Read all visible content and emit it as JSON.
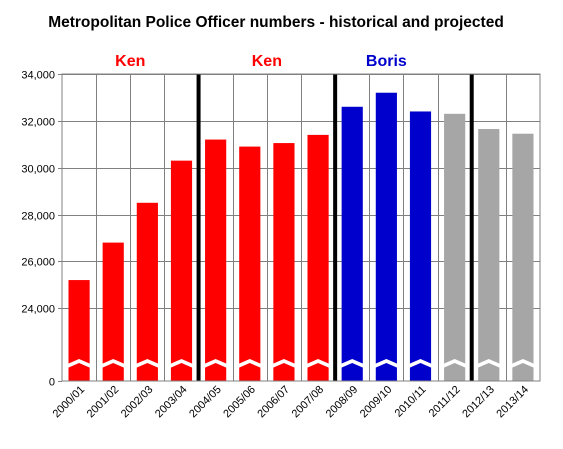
{
  "chart_data": {
    "type": "bar",
    "title": "Metropolitan Police Officer numbers - historical and projected",
    "categories": [
      "2000/01",
      "2001/02",
      "2002/03",
      "2003/04",
      "2004/05",
      "2005/06",
      "2006/07",
      "2007/08",
      "2008/09",
      "2009/10",
      "2010/11",
      "2011/12",
      "2012/13",
      "2013/14"
    ],
    "values": [
      25200,
      26800,
      28500,
      30300,
      31200,
      30900,
      31050,
      31400,
      32600,
      33200,
      32400,
      32300,
      31650,
      31450
    ],
    "bar_groups": [
      "Ken",
      "Ken",
      "Ken",
      "Ken",
      "Ken",
      "Ken",
      "Ken",
      "Ken",
      "Boris",
      "Boris",
      "Boris",
      "projected",
      "projected",
      "projected"
    ],
    "group_colors": {
      "Ken": "#ff0000",
      "Boris": "#0000cc",
      "projected": "#a6a6a6"
    },
    "yticks": [
      0,
      24000,
      26000,
      28000,
      30000,
      32000,
      34000
    ],
    "ytick_labels": [
      "0",
      "24,000",
      "26,000",
      "28,000",
      "30,000",
      "32,000",
      "34,000"
    ],
    "axis_break": true,
    "ylim": [
      22000,
      34000
    ],
    "grid": true,
    "xlabel": "",
    "ylabel": "",
    "dividers_after": [
      "2003/04",
      "2007/08",
      "2011/12"
    ],
    "era_labels": [
      {
        "text": "Ken",
        "color": "#ff0000",
        "span": [
          "2000/01",
          "2003/04"
        ]
      },
      {
        "text": "Ken",
        "color": "#ff0000",
        "span": [
          "2004/05",
          "2007/08"
        ]
      },
      {
        "text": "Boris",
        "color": "#0000cc",
        "span": [
          "2008/09",
          "2010/11"
        ]
      }
    ]
  }
}
